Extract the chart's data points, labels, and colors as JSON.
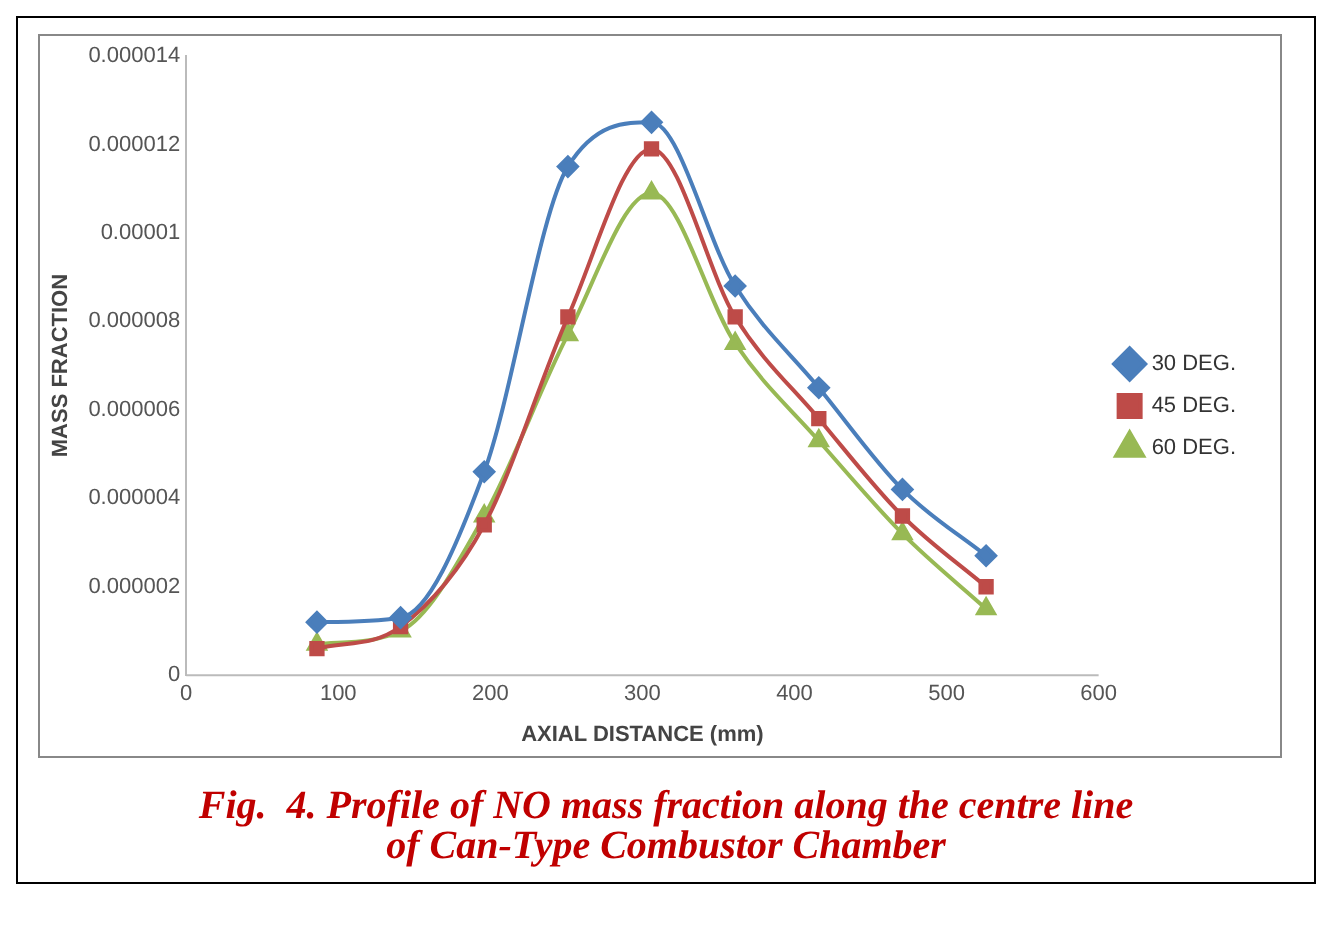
{
  "chart_data": {
    "type": "line",
    "xlabel": "AXIAL DISTANCE (mm)",
    "ylabel": "MASS FRACTION",
    "x": [
      86,
      141,
      196,
      251,
      306,
      361,
      416,
      471,
      526
    ],
    "series": [
      {
        "name": "30 DEG.",
        "color": "#4a7ebb",
        "marker": "diamond",
        "values": [
          1.2e-06,
          1.3e-06,
          4.6e-06,
          1.15e-05,
          1.25e-05,
          8.8e-06,
          6.5e-06,
          4.2e-06,
          2.7e-06
        ]
      },
      {
        "name": "45 DEG.",
        "color": "#be4b48",
        "marker": "square",
        "values": [
          6e-07,
          1.1e-06,
          3.4e-06,
          8.1e-06,
          1.19e-05,
          8.1e-06,
          5.8e-06,
          3.6e-06,
          2e-06
        ]
      },
      {
        "name": "60 DEG.",
        "color": "#98b954",
        "marker": "triangle",
        "values": [
          7e-07,
          1e-06,
          3.6e-06,
          7.7e-06,
          1.09e-05,
          7.5e-06,
          5.3e-06,
          3.2e-06,
          1.5e-06
        ]
      }
    ],
    "xlim": [
      0,
      600
    ],
    "xticks": [
      0,
      100,
      200,
      300,
      400,
      500,
      600
    ],
    "ylim": [
      0,
      1.4e-05
    ],
    "yticks": [
      0,
      {
        "value": 2e-06,
        "label": "0.000002"
      },
      {
        "value": 4e-06,
        "label": "0.000004"
      },
      {
        "value": 6e-06,
        "label": "0.000006"
      },
      {
        "value": 8e-06,
        "label": "0.000008"
      },
      {
        "value": 1e-05,
        "label": "0.00001"
      },
      {
        "value": 1.2e-05,
        "label": "0.000012"
      },
      {
        "value": 1.4e-05,
        "label": "0.000014"
      }
    ],
    "grid": false,
    "legend": "right",
    "line_style": "solid",
    "annotations": [
      "Fig.  4. Profile of NO mass fraction along the centre line of Can-Type Combustor Chamber"
    ]
  }
}
